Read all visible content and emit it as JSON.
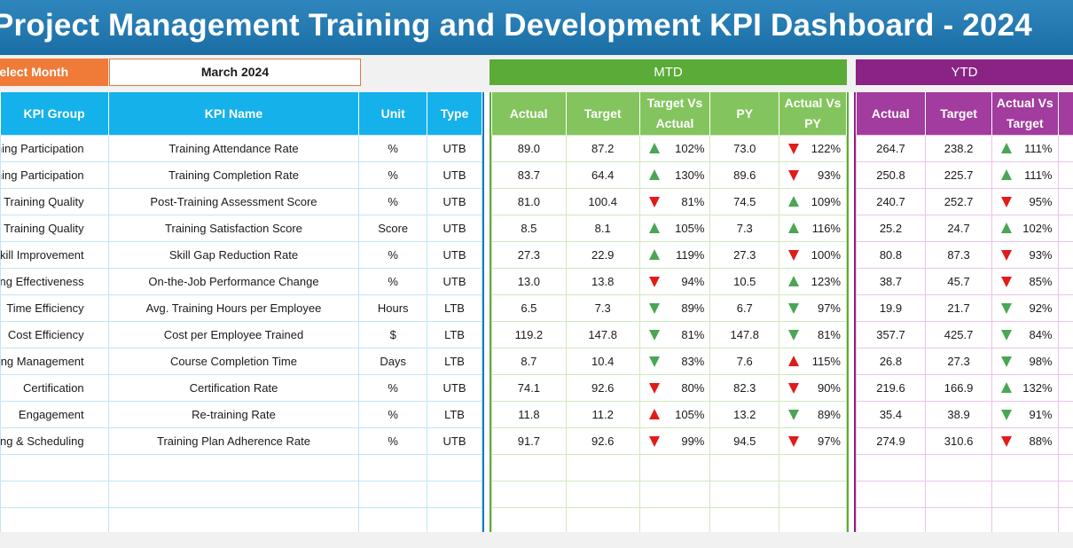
{
  "title": "Project Management Training and Development KPI Dashboard - 2024",
  "select_month": {
    "label": "Select Month",
    "value": "March 2024"
  },
  "sections": {
    "mtd": "MTD",
    "ytd": "YTD"
  },
  "left_headers": [
    "KPI Group",
    "KPI Name",
    "Unit",
    "Type"
  ],
  "mtd_headers": [
    "Actual",
    "Target",
    "Target Vs Actual",
    "PY",
    "Actual Vs PY"
  ],
  "ytd_headers": [
    "Actual",
    "Target",
    "Actual Vs Target"
  ],
  "colors": {
    "title": "#1a6ea5",
    "select": "#f07b39",
    "mtd": "#5aab37",
    "ytd": "#8a2384",
    "header": "#15b1ea",
    "up": "#4aa654",
    "down": "#e01b1b"
  },
  "rows": [
    {
      "group": "Training Participation",
      "name": "Training Attendance Rate",
      "unit": "%",
      "type": "UTB",
      "mtd_actual": "89.0",
      "mtd_target": "87.2",
      "mtd_tva": "102%",
      "mtd_tva_icon": "up-green",
      "py": "73.0",
      "avp": "122%",
      "avp_icon": "down-red",
      "ytd_actual": "264.7",
      "ytd_target": "238.2",
      "ytd_avt": "111%",
      "ytd_avt_icon": "up-green"
    },
    {
      "group": "Training Participation",
      "name": "Training Completion Rate",
      "unit": "%",
      "type": "UTB",
      "mtd_actual": "83.7",
      "mtd_target": "64.4",
      "mtd_tva": "130%",
      "mtd_tva_icon": "up-green",
      "py": "89.6",
      "avp": "93%",
      "avp_icon": "down-red",
      "ytd_actual": "250.8",
      "ytd_target": "225.7",
      "ytd_avt": "111%",
      "ytd_avt_icon": "up-green"
    },
    {
      "group": "Training Quality",
      "name": "Post-Training Assessment Score",
      "unit": "%",
      "type": "UTB",
      "mtd_actual": "81.0",
      "mtd_target": "100.4",
      "mtd_tva": "81%",
      "mtd_tva_icon": "down-red",
      "py": "74.5",
      "avp": "109%",
      "avp_icon": "up-green",
      "ytd_actual": "240.7",
      "ytd_target": "252.7",
      "ytd_avt": "95%",
      "ytd_avt_icon": "down-red"
    },
    {
      "group": "Training Quality",
      "name": "Training Satisfaction Score",
      "unit": "Score",
      "type": "UTB",
      "mtd_actual": "8.5",
      "mtd_target": "8.1",
      "mtd_tva": "105%",
      "mtd_tva_icon": "up-green",
      "py": "7.3",
      "avp": "116%",
      "avp_icon": "up-green",
      "ytd_actual": "25.2",
      "ytd_target": "24.7",
      "ytd_avt": "102%",
      "ytd_avt_icon": "up-green"
    },
    {
      "group": "Skill Improvement",
      "name": "Skill Gap Reduction Rate",
      "unit": "%",
      "type": "UTB",
      "mtd_actual": "27.3",
      "mtd_target": "22.9",
      "mtd_tva": "119%",
      "mtd_tva_icon": "up-green",
      "py": "27.3",
      "avp": "100%",
      "avp_icon": "down-red",
      "ytd_actual": "80.8",
      "ytd_target": "87.3",
      "ytd_avt": "93%",
      "ytd_avt_icon": "down-red"
    },
    {
      "group": "Training Effectiveness",
      "name": "On-the-Job Performance Change",
      "unit": "%",
      "type": "UTB",
      "mtd_actual": "13.0",
      "mtd_target": "13.8",
      "mtd_tva": "94%",
      "mtd_tva_icon": "down-red",
      "py": "10.5",
      "avp": "123%",
      "avp_icon": "up-green",
      "ytd_actual": "38.7",
      "ytd_target": "45.7",
      "ytd_avt": "85%",
      "ytd_avt_icon": "down-red"
    },
    {
      "group": "Time Efficiency",
      "name": "Avg. Training Hours per Employee",
      "unit": "Hours",
      "type": "LTB",
      "mtd_actual": "6.5",
      "mtd_target": "7.3",
      "mtd_tva": "89%",
      "mtd_tva_icon": "down-green",
      "py": "6.7",
      "avp": "97%",
      "avp_icon": "down-green",
      "ytd_actual": "19.9",
      "ytd_target": "21.7",
      "ytd_avt": "92%",
      "ytd_avt_icon": "down-green"
    },
    {
      "group": "Cost Efficiency",
      "name": "Cost per Employee Trained",
      "unit": "$",
      "type": "LTB",
      "mtd_actual": "119.2",
      "mtd_target": "147.8",
      "mtd_tva": "81%",
      "mtd_tva_icon": "down-green",
      "py": "147.8",
      "avp": "81%",
      "avp_icon": "down-green",
      "ytd_actual": "357.7",
      "ytd_target": "425.7",
      "ytd_avt": "84%",
      "ytd_avt_icon": "down-green"
    },
    {
      "group": "Learning Management",
      "name": "Course Completion Time",
      "unit": "Days",
      "type": "LTB",
      "mtd_actual": "8.7",
      "mtd_target": "10.4",
      "mtd_tva": "83%",
      "mtd_tva_icon": "down-green",
      "py": "7.6",
      "avp": "115%",
      "avp_icon": "up-red",
      "ytd_actual": "26.8",
      "ytd_target": "27.3",
      "ytd_avt": "98%",
      "ytd_avt_icon": "down-green"
    },
    {
      "group": "Certification",
      "name": "Certification Rate",
      "unit": "%",
      "type": "UTB",
      "mtd_actual": "74.1",
      "mtd_target": "92.6",
      "mtd_tva": "80%",
      "mtd_tva_icon": "down-red",
      "py": "82.3",
      "avp": "90%",
      "avp_icon": "down-red",
      "ytd_actual": "219.6",
      "ytd_target": "166.9",
      "ytd_avt": "132%",
      "ytd_avt_icon": "up-green"
    },
    {
      "group": "Engagement",
      "name": "Re-training Rate",
      "unit": "%",
      "type": "LTB",
      "mtd_actual": "11.8",
      "mtd_target": "11.2",
      "mtd_tva": "105%",
      "mtd_tva_icon": "up-red",
      "py": "13.2",
      "avp": "89%",
      "avp_icon": "down-green",
      "ytd_actual": "35.4",
      "ytd_target": "38.9",
      "ytd_avt": "91%",
      "ytd_avt_icon": "down-green"
    },
    {
      "group": "Training & Scheduling",
      "name": "Training Plan Adherence Rate",
      "unit": "%",
      "type": "UTB",
      "mtd_actual": "91.7",
      "mtd_target": "92.6",
      "mtd_tva": "99%",
      "mtd_tva_icon": "down-red",
      "py": "94.5",
      "avp": "97%",
      "avp_icon": "down-red",
      "ytd_actual": "274.9",
      "ytd_target": "310.6",
      "ytd_avt": "88%",
      "ytd_avt_icon": "down-red"
    }
  ]
}
